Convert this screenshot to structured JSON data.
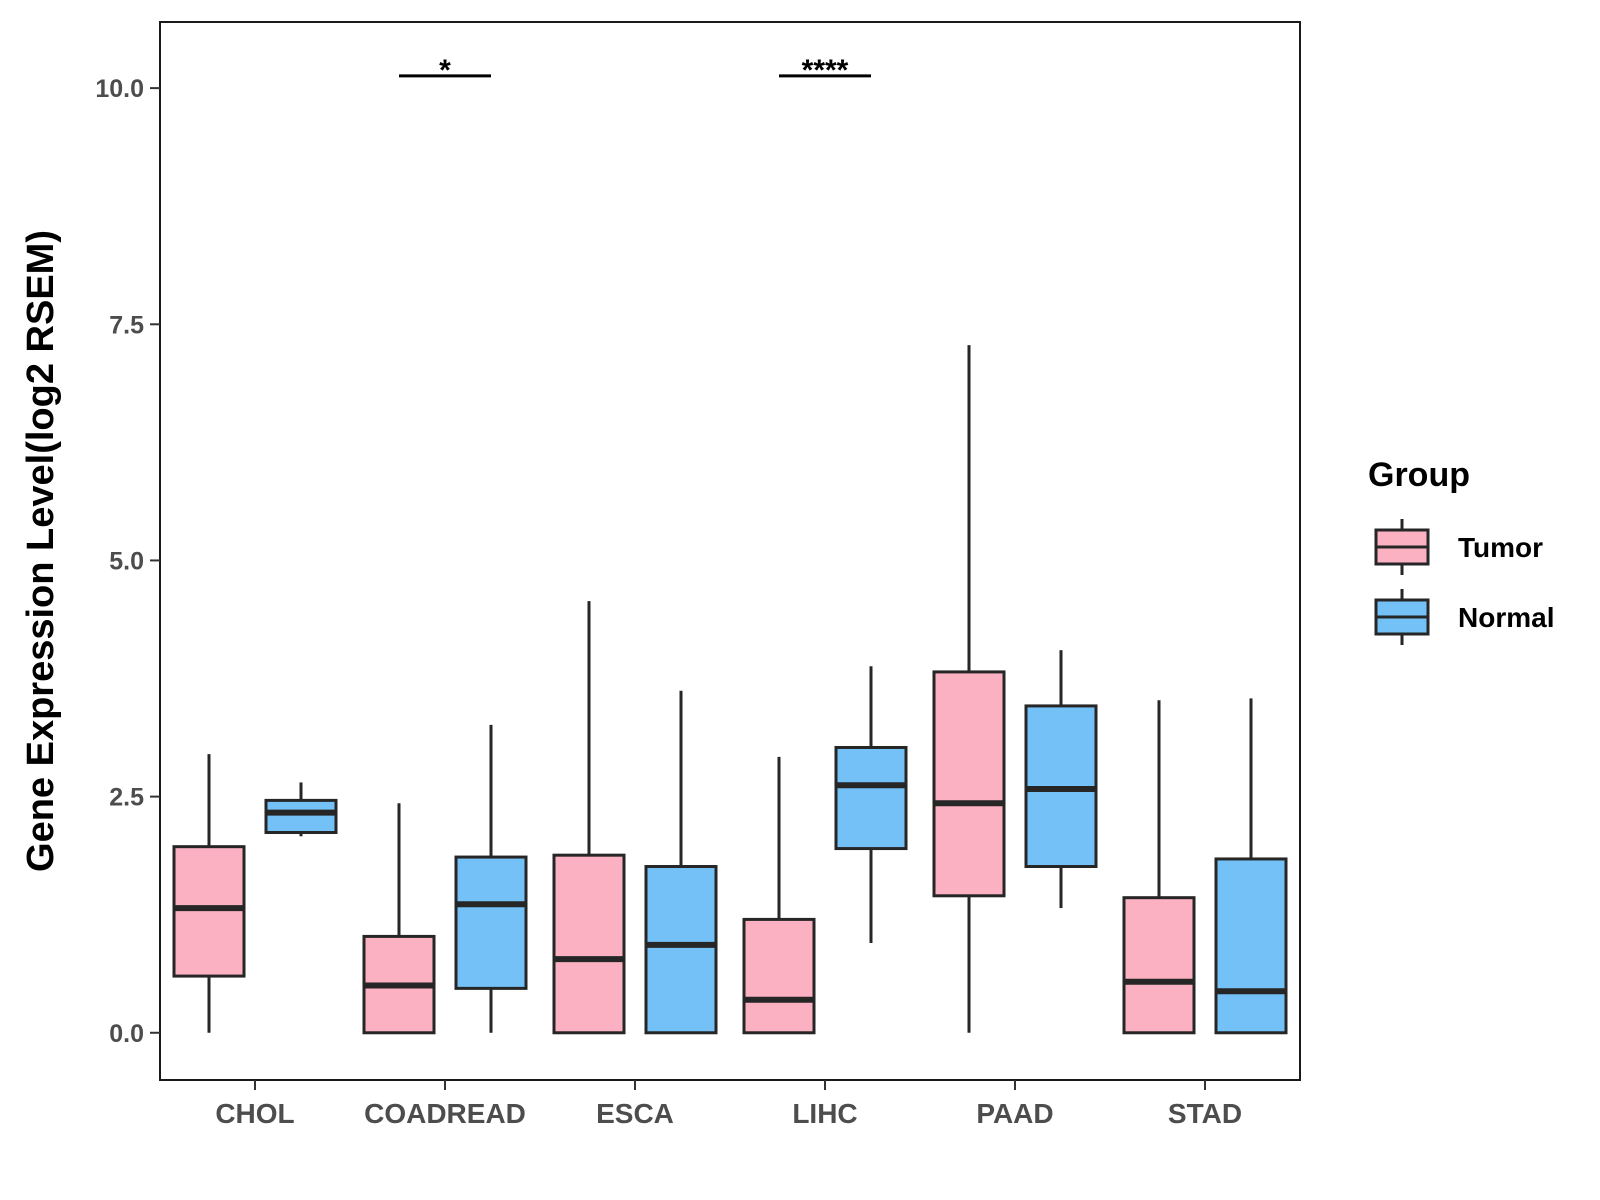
{
  "chart_data": {
    "type": "boxplot",
    "title": "",
    "xlabel": "",
    "ylabel": "Gene Expression Level(log2 RSEM)",
    "ylim": [
      -0.5,
      10.7
    ],
    "yticks": [
      0.0,
      2.5,
      5.0,
      7.5,
      10.0
    ],
    "ytick_labels": [
      "0.0",
      "2.5",
      "5.0",
      "7.5",
      "10.0"
    ],
    "categories": [
      "CHOL",
      "COADREAD",
      "ESCA",
      "LIHC",
      "PAAD",
      "STAD"
    ],
    "legend": {
      "title": "Group",
      "position": "right",
      "entries": [
        {
          "name": "Tumor",
          "color": "#fbb1c2"
        },
        {
          "name": "Normal",
          "color": "#74c1f8"
        }
      ]
    },
    "series": [
      {
        "name": "Tumor",
        "color": "#fbb1c2",
        "boxes": [
          {
            "category": "CHOL",
            "whisker_low": 0.0,
            "q1": 0.6,
            "median": 1.32,
            "q3": 1.97,
            "whisker_high": 2.95
          },
          {
            "category": "COADREAD",
            "whisker_low": 0.0,
            "q1": 0.0,
            "median": 0.5,
            "q3": 1.02,
            "whisker_high": 2.43
          },
          {
            "category": "ESCA",
            "whisker_low": 0.0,
            "q1": 0.0,
            "median": 0.78,
            "q3": 1.88,
            "whisker_high": 4.57
          },
          {
            "category": "LIHC",
            "whisker_low": 0.0,
            "q1": 0.0,
            "median": 0.35,
            "q3": 1.2,
            "whisker_high": 2.92
          },
          {
            "category": "PAAD",
            "whisker_low": 0.0,
            "q1": 1.45,
            "median": 2.43,
            "q3": 3.82,
            "whisker_high": 7.28
          },
          {
            "category": "STAD",
            "whisker_low": 0.0,
            "q1": 0.0,
            "median": 0.54,
            "q3": 1.43,
            "whisker_high": 3.52
          }
        ]
      },
      {
        "name": "Normal",
        "color": "#74c1f8",
        "boxes": [
          {
            "category": "CHOL",
            "whisker_low": 2.08,
            "q1": 2.12,
            "median": 2.33,
            "q3": 2.46,
            "whisker_high": 2.65
          },
          {
            "category": "COADREAD",
            "whisker_low": 0.0,
            "q1": 0.47,
            "median": 1.36,
            "q3": 1.86,
            "whisker_high": 3.26
          },
          {
            "category": "ESCA",
            "whisker_low": 0.0,
            "q1": 0.0,
            "median": 0.93,
            "q3": 1.76,
            "whisker_high": 3.62
          },
          {
            "category": "LIHC",
            "whisker_low": 0.95,
            "q1": 1.95,
            "median": 2.62,
            "q3": 3.02,
            "whisker_high": 3.88
          },
          {
            "category": "PAAD",
            "whisker_low": 1.32,
            "q1": 1.76,
            "median": 2.58,
            "q3": 3.46,
            "whisker_high": 4.05
          },
          {
            "category": "STAD",
            "whisker_low": 0.0,
            "q1": 0.0,
            "median": 0.44,
            "q3": 1.84,
            "whisker_high": 3.54
          }
        ]
      }
    ],
    "annotations": [
      {
        "category": "COADREAD",
        "label": "*",
        "y": 10.13
      },
      {
        "category": "LIHC",
        "label": "****",
        "y": 10.13
      }
    ]
  }
}
